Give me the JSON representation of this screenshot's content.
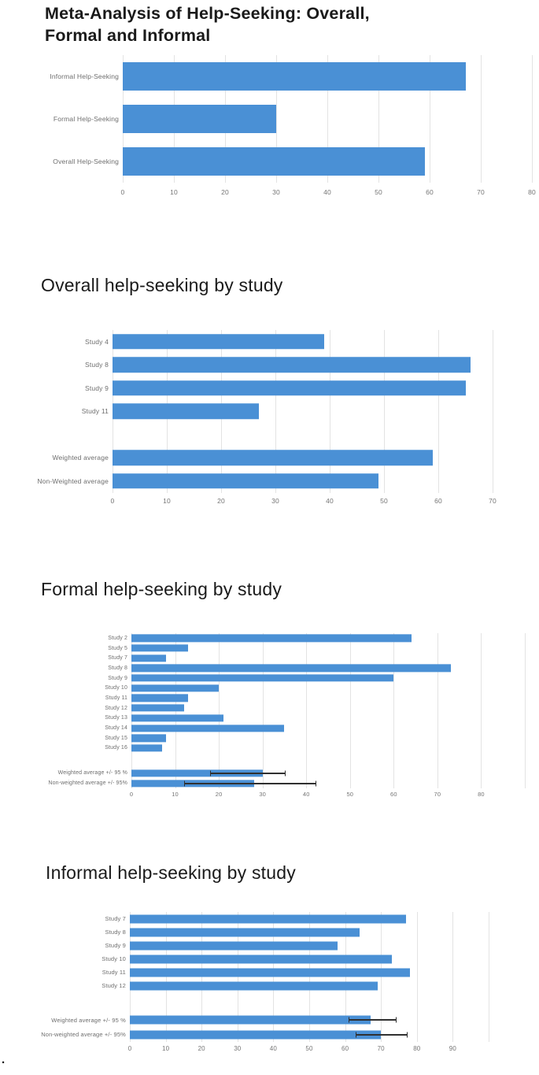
{
  "styles": {
    "bar_color": "#4a90d5",
    "gridline_color": "#e3e3e3",
    "error_bar_color": "#303030",
    "title_color": "#1a1a1a",
    "axis_text_color": "#757575"
  },
  "stray_mark": ".",
  "chart_data": [
    {
      "type": "bar",
      "orientation": "horizontal",
      "title": "Meta-Analysis of Help-Seeking: Overall, Formal and Informal",
      "title_lines": [
        "Meta-Analysis of Help-Seeking: Overall,",
        "Formal and Informal"
      ],
      "xlabel": "",
      "ylabel": "",
      "xlim": [
        0,
        80
      ],
      "plot_xmax": 80,
      "xticks": [
        0,
        10,
        20,
        30,
        40,
        50,
        60,
        70,
        80
      ],
      "gridline_values": [
        0,
        10,
        20,
        30,
        40,
        50,
        60,
        70,
        80
      ],
      "grid": true,
      "legend": "none",
      "rows": [
        {
          "label": "Informal Help-Seeking",
          "value": 67
        },
        {
          "label": "Formal Help-Seeking",
          "value": 30
        },
        {
          "label": "Overall Help-Seeking",
          "value": 59
        }
      ]
    },
    {
      "type": "bar",
      "orientation": "horizontal",
      "title": "Overall help-seeking by study",
      "xlabel": "",
      "ylabel": "",
      "xlim": [
        0,
        70
      ],
      "plot_xmax": 70,
      "xticks": [
        0,
        10,
        20,
        30,
        40,
        50,
        60,
        70
      ],
      "gridline_values": [
        0,
        10,
        20,
        30,
        40,
        50,
        60,
        70
      ],
      "grid": true,
      "legend": "none",
      "rows": [
        {
          "label": "Study 4",
          "value": 39
        },
        {
          "label": "Study 8",
          "value": 66
        },
        {
          "label": "Study 9",
          "value": 65
        },
        {
          "label": "Study 11",
          "value": 27
        },
        {
          "label": "",
          "value": null,
          "spacer": true
        },
        {
          "label": "Weighted average",
          "value": 59
        },
        {
          "label": "Non-Weighted average",
          "value": 49
        }
      ]
    },
    {
      "type": "bar",
      "orientation": "horizontal",
      "title": "Formal help-seeking by study",
      "xlabel": "",
      "ylabel": "",
      "xlim": [
        0,
        80
      ],
      "plot_xmax": 90,
      "xticks": [
        0,
        10,
        20,
        30,
        40,
        50,
        60,
        70,
        80
      ],
      "gridline_values": [
        0,
        10,
        20,
        30,
        40,
        50,
        60,
        70,
        80,
        90
      ],
      "grid": true,
      "legend": "none",
      "rows": [
        {
          "label": "Study 2",
          "value": 64
        },
        {
          "label": "Study 5",
          "value": 13
        },
        {
          "label": "Study 7",
          "value": 8
        },
        {
          "label": "Study 8",
          "value": 73
        },
        {
          "label": "Study 9",
          "value": 60
        },
        {
          "label": "Study 10",
          "value": 20
        },
        {
          "label": "Study 11",
          "value": 13
        },
        {
          "label": "Study 12",
          "value": 12
        },
        {
          "label": "Study 13",
          "value": 21
        },
        {
          "label": "Study 14",
          "value": 35
        },
        {
          "label": "Study 15",
          "value": 8
        },
        {
          "label": "Study 16",
          "value": 7
        },
        {
          "label": "",
          "value": null,
          "spacer": true
        },
        {
          "label": "Weighted average +/- 95 %",
          "value": 30,
          "ci": [
            18,
            35
          ]
        },
        {
          "label": "Non-weighted average +/- 95%",
          "value": 28,
          "ci": [
            12,
            42
          ]
        }
      ]
    },
    {
      "type": "bar",
      "orientation": "horizontal",
      "title": "Informal help-seeking by study",
      "xlabel": "",
      "ylabel": "",
      "xlim": [
        0,
        90
      ],
      "plot_xmax": 100,
      "xticks": [
        0,
        10,
        20,
        30,
        40,
        50,
        60,
        70,
        80,
        90
      ],
      "gridline_values": [
        0,
        10,
        20,
        30,
        40,
        50,
        60,
        70,
        80,
        90,
        100
      ],
      "grid": true,
      "legend": "none",
      "rows": [
        {
          "label": "Study 7",
          "value": 77
        },
        {
          "label": "Study 8",
          "value": 64
        },
        {
          "label": "Study 9",
          "value": 58
        },
        {
          "label": "Study 10",
          "value": 73
        },
        {
          "label": "Study 11",
          "value": 78
        },
        {
          "label": "Study 12",
          "value": 69
        },
        {
          "label": "",
          "value": null,
          "spacer": true
        },
        {
          "label": "Weighted average +/- 95 %",
          "value": 67,
          "ci": [
            61,
            74
          ]
        },
        {
          "label": "Non-weighted average +/- 95%",
          "value": 70,
          "ci": [
            63,
            77
          ]
        }
      ]
    }
  ]
}
